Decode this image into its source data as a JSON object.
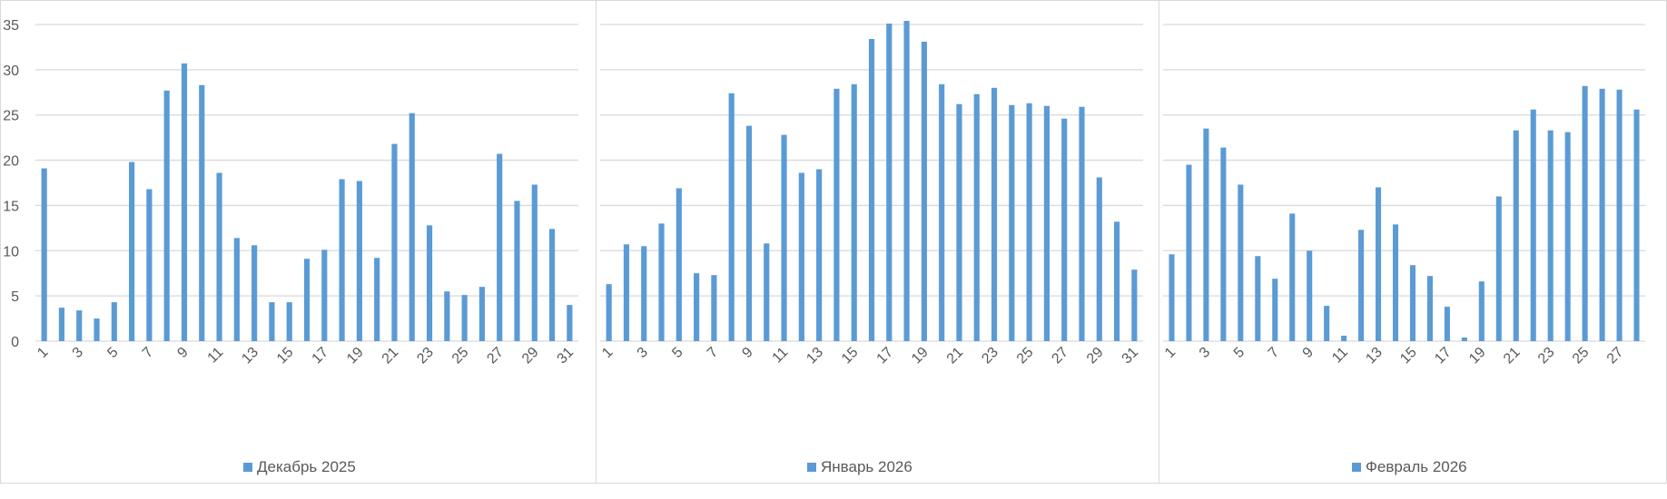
{
  "colors": {
    "bar": "#5B9BD5",
    "grid": "#d9d9d9",
    "axis_text": "#595959",
    "border": "#d9d9d9"
  },
  "chart_data": [
    {
      "type": "bar",
      "legend": "Декабрь 2025",
      "legend_position": "bottom",
      "grid": true,
      "ylim": [
        0,
        35
      ],
      "yticks": [
        0,
        5,
        10,
        15,
        20,
        25,
        30,
        35
      ],
      "categories": [
        1,
        2,
        3,
        4,
        5,
        6,
        7,
        8,
        9,
        10,
        11,
        12,
        13,
        14,
        15,
        16,
        17,
        18,
        19,
        20,
        21,
        22,
        23,
        24,
        25,
        26,
        27,
        28,
        29,
        30,
        31
      ],
      "tick_labels": [
        "1",
        "3",
        "5",
        "7",
        "9",
        "11",
        "13",
        "15",
        "17",
        "19",
        "21",
        "23",
        "25",
        "27",
        "29",
        "31"
      ],
      "values": [
        19.1,
        3.7,
        3.4,
        2.5,
        4.3,
        19.8,
        16.8,
        27.7,
        30.7,
        28.3,
        18.6,
        11.4,
        10.6,
        4.3,
        4.3,
        9.1,
        10.1,
        17.9,
        17.7,
        9.2,
        21.8,
        25.2,
        12.8,
        5.5,
        5.1,
        6.0,
        20.7,
        15.5,
        17.3,
        12.4,
        4.0
      ]
    },
    {
      "type": "bar",
      "legend": "Январь 2026",
      "legend_position": "bottom",
      "grid": true,
      "ylim": [
        0,
        35
      ],
      "yticks": [
        0,
        5,
        10,
        15,
        20,
        25,
        30,
        35
      ],
      "categories": [
        1,
        2,
        3,
        4,
        5,
        6,
        7,
        8,
        9,
        10,
        11,
        12,
        13,
        14,
        15,
        16,
        17,
        18,
        19,
        20,
        21,
        22,
        23,
        24,
        25,
        26,
        27,
        28,
        29,
        30,
        31
      ],
      "tick_labels": [
        "1",
        "3",
        "5",
        "7",
        "9",
        "11",
        "13",
        "15",
        "17",
        "19",
        "21",
        "23",
        "25",
        "27",
        "29",
        "31"
      ],
      "values": [
        6.3,
        10.7,
        10.5,
        13.0,
        16.9,
        7.5,
        7.3,
        27.4,
        23.8,
        10.8,
        22.8,
        18.6,
        19.0,
        27.9,
        28.4,
        33.4,
        35.1,
        35.4,
        33.1,
        28.4,
        26.2,
        27.3,
        28.0,
        26.1,
        26.3,
        26.0,
        24.6,
        25.9,
        18.1,
        13.2,
        7.9
      ]
    },
    {
      "type": "bar",
      "legend": "Февраль 2026",
      "legend_position": "bottom",
      "grid": true,
      "ylim": [
        0,
        35
      ],
      "yticks": [
        0,
        5,
        10,
        15,
        20,
        25,
        30,
        35
      ],
      "categories": [
        1,
        2,
        3,
        4,
        5,
        6,
        7,
        8,
        9,
        10,
        11,
        12,
        13,
        14,
        15,
        16,
        17,
        18,
        19,
        20,
        21,
        22,
        23,
        24,
        25,
        26,
        27,
        28
      ],
      "tick_labels": [
        "1",
        "3",
        "5",
        "7",
        "9",
        "11",
        "13",
        "15",
        "17",
        "19",
        "21",
        "23",
        "25",
        "27"
      ],
      "values": [
        9.6,
        19.5,
        23.5,
        21.4,
        17.3,
        9.4,
        6.9,
        14.1,
        10.0,
        3.9,
        0.6,
        12.3,
        17.0,
        12.9,
        8.4,
        7.2,
        3.8,
        0.4,
        6.6,
        16.0,
        23.3,
        25.6,
        23.3,
        23.1,
        28.2,
        27.9,
        27.8,
        25.6
      ]
    }
  ]
}
